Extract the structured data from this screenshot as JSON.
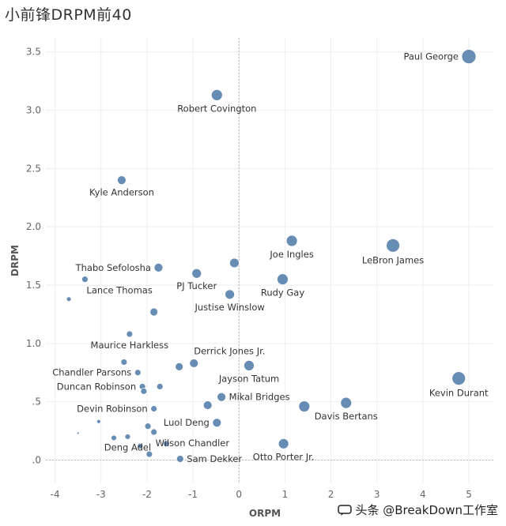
{
  "title": "小前锋DRPM前40",
  "watermark": {
    "text": "头条 @BreakDown工作室"
  },
  "chart_data": {
    "type": "scatter",
    "title": "小前锋DRPM前40",
    "xlabel": "ORPM",
    "ylabel": "DRPM",
    "xlim": [
      -4.2,
      5.55
    ],
    "ylim": [
      -0.2,
      3.62
    ],
    "x_ticks": [
      -4,
      -3,
      -2,
      -1,
      0,
      1,
      2,
      3,
      4,
      5
    ],
    "y_ticks": [
      0,
      0.5,
      1.0,
      1.5,
      2.0,
      2.5,
      3.0,
      3.5
    ],
    "x_tick_labels": [
      "-4",
      "-3",
      "-2",
      "-1",
      "0",
      "1",
      "2",
      "3",
      "4",
      "5"
    ],
    "y_tick_labels": [
      ".0",
      ".5",
      "1.0",
      "1.5",
      "2.0",
      "2.5",
      "3.0",
      "3.5"
    ],
    "grid": true,
    "zero_lines": true,
    "point_color": "#4e79a7",
    "points": [
      {
        "x": 5.0,
        "y": 3.46,
        "r": 9,
        "label": "Paul George",
        "label_pos": "left"
      },
      {
        "x": -0.48,
        "y": 3.13,
        "r": 7,
        "label": "Robert Covington",
        "label_pos": "below"
      },
      {
        "x": -2.55,
        "y": 2.4,
        "r": 5.5,
        "label": "Kyle Anderson",
        "label_pos": "below"
      },
      {
        "x": 1.15,
        "y": 1.88,
        "r": 7,
        "label": "Joe Ingles",
        "label_pos": "below"
      },
      {
        "x": 3.35,
        "y": 1.84,
        "r": 8.5,
        "label": "LeBron James",
        "label_pos": "below"
      },
      {
        "x": -1.75,
        "y": 1.65,
        "r": 5.5,
        "label": "Thabo Sefolosha",
        "label_pos": "left"
      },
      {
        "x": -0.1,
        "y": 1.69,
        "r": 6,
        "label": "",
        "label_pos": "none"
      },
      {
        "x": -0.92,
        "y": 1.6,
        "r": 6,
        "label": "PJ Tucker",
        "label_pos": "below"
      },
      {
        "x": 0.95,
        "y": 1.55,
        "r": 7,
        "label": "Rudy Gay",
        "label_pos": "below"
      },
      {
        "x": -3.35,
        "y": 1.55,
        "r": 4,
        "label": "Lance Thomas",
        "label_pos": "below-right"
      },
      {
        "x": -0.2,
        "y": 1.42,
        "r": 6,
        "label": "Justise Winslow",
        "label_pos": "below"
      },
      {
        "x": -3.7,
        "y": 1.38,
        "r": 3,
        "label": "",
        "label_pos": "none"
      },
      {
        "x": -1.85,
        "y": 1.27,
        "r": 5,
        "label": "",
        "label_pos": "none"
      },
      {
        "x": -2.38,
        "y": 1.08,
        "r": 4,
        "label": "Maurice Harkless",
        "label_pos": "below"
      },
      {
        "x": -0.98,
        "y": 0.83,
        "r": 5.5,
        "label": "Derrick Jones Jr.",
        "label_pos": "above-right"
      },
      {
        "x": -2.5,
        "y": 0.84,
        "r": 4,
        "label": "",
        "label_pos": "none"
      },
      {
        "x": -1.3,
        "y": 0.8,
        "r": 5,
        "label": "",
        "label_pos": "none"
      },
      {
        "x": 0.22,
        "y": 0.81,
        "r": 6.5,
        "label": "Jayson Tatum",
        "label_pos": "below"
      },
      {
        "x": 4.78,
        "y": 0.7,
        "r": 8.5,
        "label": "Kevin Durant",
        "label_pos": "below"
      },
      {
        "x": -2.2,
        "y": 0.75,
        "r": 4,
        "label": "Chandler Parsons",
        "label_pos": "left"
      },
      {
        "x": -2.1,
        "y": 0.63,
        "r": 4,
        "label": "Duncan Robinson",
        "label_pos": "left"
      },
      {
        "x": -2.07,
        "y": 0.59,
        "r": 4,
        "label": "",
        "label_pos": "none"
      },
      {
        "x": -1.72,
        "y": 0.63,
        "r": 4,
        "label": "",
        "label_pos": "none"
      },
      {
        "x": -0.38,
        "y": 0.54,
        "r": 5.5,
        "label": "Mikal Bridges",
        "label_pos": "right"
      },
      {
        "x": 2.33,
        "y": 0.49,
        "r": 7,
        "label": "Davis Bertans",
        "label_pos": "below"
      },
      {
        "x": -0.68,
        "y": 0.47,
        "r": 5.5,
        "label": "",
        "label_pos": "none"
      },
      {
        "x": 1.42,
        "y": 0.46,
        "r": 7,
        "label": "",
        "label_pos": "none"
      },
      {
        "x": -1.85,
        "y": 0.44,
        "r": 4,
        "label": "Devin Robinson",
        "label_pos": "left"
      },
      {
        "x": -0.48,
        "y": 0.32,
        "r": 5.5,
        "label": "Luol Deng",
        "label_pos": "left"
      },
      {
        "x": -3.05,
        "y": 0.33,
        "r": 2.5,
        "label": "",
        "label_pos": "none"
      },
      {
        "x": -1.98,
        "y": 0.29,
        "r": 4,
        "label": "",
        "label_pos": "none"
      },
      {
        "x": -1.85,
        "y": 0.24,
        "r": 4,
        "label": "Wilson Chandler",
        "label_pos": "below-right"
      },
      {
        "x": -3.5,
        "y": 0.23,
        "r": 1.5,
        "label": "",
        "label_pos": "none"
      },
      {
        "x": -2.72,
        "y": 0.19,
        "r": 3.5,
        "label": "",
        "label_pos": "none"
      },
      {
        "x": -2.42,
        "y": 0.2,
        "r": 3.5,
        "label": "Deng Adel",
        "label_pos": "below"
      },
      {
        "x": -1.58,
        "y": 0.14,
        "r": 4,
        "label": "",
        "label_pos": "none"
      },
      {
        "x": -2.15,
        "y": 0.12,
        "r": 3.5,
        "label": "",
        "label_pos": "none"
      },
      {
        "x": -1.95,
        "y": 0.05,
        "r": 4,
        "label": "",
        "label_pos": "none"
      },
      {
        "x": 0.97,
        "y": 0.14,
        "r": 6.5,
        "label": "Otto Porter Jr.",
        "label_pos": "below"
      },
      {
        "x": -1.28,
        "y": 0.01,
        "r": 4.5,
        "label": "Sam Dekker",
        "label_pos": "right"
      }
    ]
  }
}
